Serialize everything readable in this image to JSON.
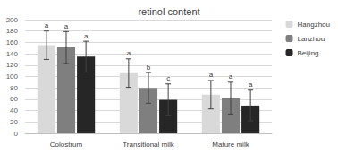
{
  "chart_data": {
    "type": "bar",
    "title": "retinol content",
    "categories": [
      "Colostrum",
      "Transitional milk",
      "Mature milk"
    ],
    "series": [
      {
        "name": "Hangzhou",
        "color": "#d9d9d9",
        "values": [
          155,
          106,
          68
        ],
        "errors": [
          25,
          25,
          25
        ],
        "annotations": [
          "a",
          "a",
          "a"
        ]
      },
      {
        "name": "Lanzhou",
        "color": "#7f7f7f",
        "values": [
          151,
          80,
          62
        ],
        "errors": [
          28,
          27,
          28
        ],
        "annotations": [
          "a",
          "b",
          "a"
        ]
      },
      {
        "name": "Beijing",
        "color": "#262626",
        "values": [
          135,
          59,
          49
        ],
        "errors": [
          27,
          28,
          27
        ],
        "annotations": [
          "a",
          "c",
          "a"
        ]
      }
    ],
    "ylim": [
      0,
      200
    ],
    "yticks": [
      0,
      20,
      40,
      60,
      80,
      100,
      120,
      140,
      160,
      180,
      200
    ],
    "grid": true,
    "legend": "right"
  }
}
